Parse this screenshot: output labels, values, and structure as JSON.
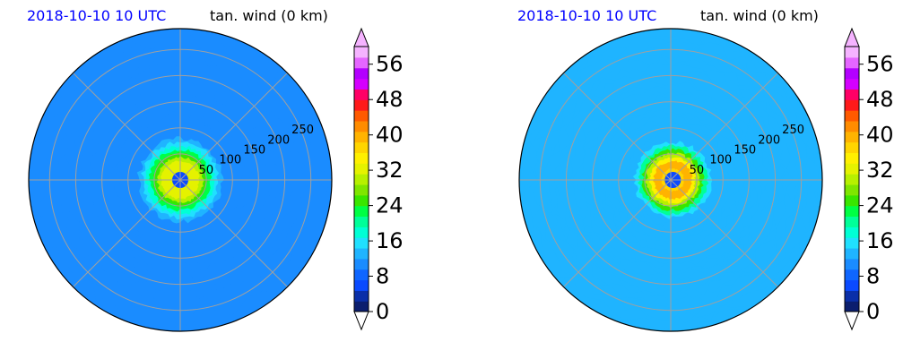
{
  "figure": {
    "panels": [
      {
        "title_left": "2018-10-10 10 UTC",
        "title_right": "tan. wind (0 km)"
      },
      {
        "title_left": "2018-10-10 10 UTC",
        "title_right": "tan. wind (0 km)"
      }
    ]
  },
  "chart_data": [
    {
      "type": "heatmap",
      "projection": "polar",
      "title_left": "2018-10-10 10 UTC",
      "title_right": "tan. wind (0 km)",
      "radial_ticks": [
        50,
        100,
        150,
        200,
        250
      ],
      "radial_max": 290,
      "grid": true,
      "center_offset": [
        0,
        0
      ],
      "core_ring_radius": 30,
      "core_ring_value": 33,
      "core_ring_width": 25,
      "outer_background_value": 10,
      "colorbar": {
        "ticks": [
          0,
          8,
          16,
          24,
          32,
          40,
          48,
          56
        ],
        "range": [
          0,
          60
        ],
        "extend": "both"
      }
    },
    {
      "type": "heatmap",
      "projection": "polar",
      "title_left": "2018-10-10 10 UTC",
      "title_right": "tan. wind (0 km)",
      "radial_ticks": [
        50,
        100,
        150,
        200,
        250
      ],
      "radial_max": 290,
      "grid": true,
      "center_offset": [
        4,
        0
      ],
      "core_ring_radius": 30,
      "core_ring_value": 40,
      "core_ring_width": 22,
      "outer_background_value": 12,
      "colorbar": {
        "ticks": [
          0,
          8,
          16,
          24,
          32,
          40,
          48,
          56
        ],
        "range": [
          0,
          60
        ],
        "extend": "both"
      }
    }
  ],
  "colormap": [
    "#0b1e6e",
    "#0a2fa8",
    "#0a4aff",
    "#0f66ff",
    "#1a8cff",
    "#1fb4ff",
    "#20e0ff",
    "#00ffd5",
    "#00ff99",
    "#00ff44",
    "#39e600",
    "#7fe600",
    "#b7f000",
    "#e5f200",
    "#fff000",
    "#ffd500",
    "#ffb300",
    "#ff8c00",
    "#ff5a00",
    "#ff1a1a",
    "#ff0066",
    "#d400ff",
    "#b300ff",
    "#e566ff",
    "#f5b3ff"
  ]
}
